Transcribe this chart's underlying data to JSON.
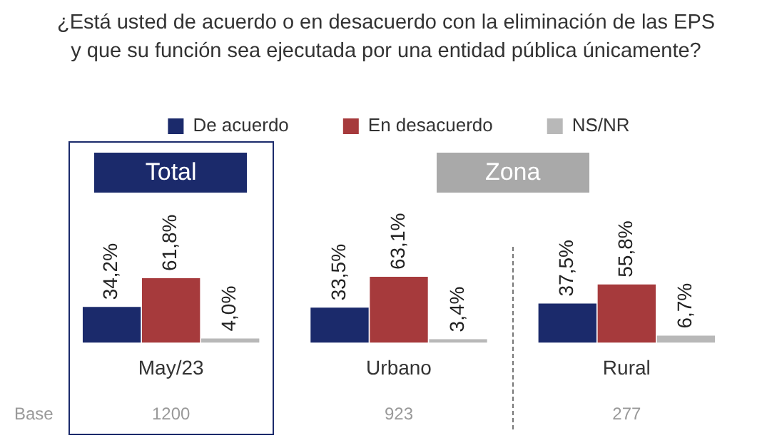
{
  "chart_data": {
    "type": "bar",
    "title": "¿Está usted de acuerdo o en desacuerdo con la eliminación de las EPS y que su función sea ejecutada por una entidad pública únicamente?",
    "categories": [
      "May/23",
      "Urbano",
      "Rural"
    ],
    "series": [
      {
        "name": "De acuerdo",
        "color": "#1b2a6b",
        "values": [
          34.2,
          33.5,
          37.5
        ],
        "value_labels": [
          "34,2%",
          "33,5%",
          "37,5%"
        ]
      },
      {
        "name": "En desacuerdo",
        "color": "#a63a3c",
        "values": [
          61.8,
          63.1,
          55.8
        ],
        "value_labels": [
          "61,8%",
          "63,1%",
          "55,8%"
        ]
      },
      {
        "name": "NS/NR",
        "color": "#b8b8b8",
        "values": [
          4.0,
          3.4,
          6.7
        ],
        "value_labels": [
          "4,0%",
          "3,4%",
          "6,7%"
        ]
      }
    ],
    "tick_labels": "x",
    "grid": false,
    "legend": "top",
    "annotations": [
      "Total",
      "Zona",
      "Base",
      "1200",
      "923",
      "277"
    ]
  }
}
